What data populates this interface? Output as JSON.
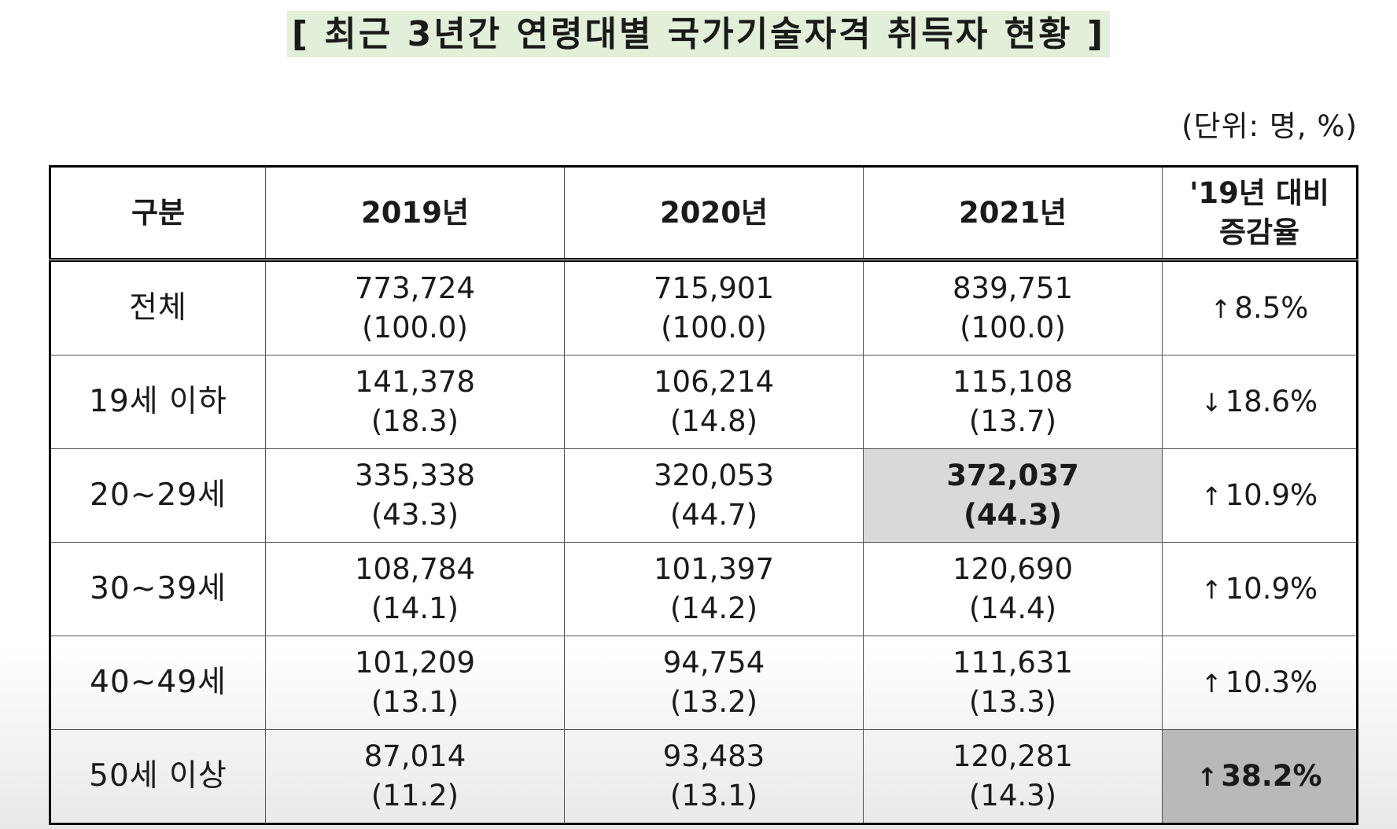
{
  "title": "[ 최근 3년간 연령대별 국가기술자격 취득자 현황 ]",
  "unit": "(단위: 명, %)",
  "headers": [
    "구분",
    "2019년",
    "2020년",
    "2021년",
    "'19년 대비 증감율"
  ],
  "rows": [
    {
      "label": "전체",
      "y2019": "773,724",
      "p2019": "(100.0)",
      "y2020": "715,901",
      "p2020": "(100.0)",
      "y2021": "839,751",
      "p2021": "(100.0)",
      "arrow": "↑",
      "change": "8.5%"
    },
    {
      "label": "19세 이하",
      "y2019": "141,378",
      "p2019": "(18.3)",
      "y2020": "106,214",
      "p2020": "(14.8)",
      "y2021": "115,108",
      "p2021": "(13.7)",
      "arrow": "↓",
      "change": "18.6%"
    },
    {
      "label": "20~29세",
      "y2019": "335,338",
      "p2019": "(43.3)",
      "y2020": "320,053",
      "p2020": "(44.7)",
      "y2021": "372,037",
      "p2021": "(44.3)",
      "arrow": "↑",
      "change": "10.9%"
    },
    {
      "label": "30~39세",
      "y2019": "108,784",
      "p2019": "(14.1)",
      "y2020": "101,397",
      "p2020": "(14.2)",
      "y2021": "120,690",
      "p2021": "(14.4)",
      "arrow": "↑",
      "change": "10.9%"
    },
    {
      "label": "40~49세",
      "y2019": "101,209",
      "p2019": "(13.1)",
      "y2020": "94,754",
      "p2020": "(13.2)",
      "y2021": "111,631",
      "p2021": "(13.3)",
      "arrow": "↑",
      "change": "10.3%"
    },
    {
      "label": "50세 이상",
      "y2019": "87,014",
      "p2019": "(11.2)",
      "y2020": "93,483",
      "p2020": "(13.1)",
      "y2021": "120,281",
      "p2021": "(14.3)",
      "arrow": "↑",
      "change": "38.2%"
    }
  ],
  "highlight_colors": {
    "light": "#d9d9d9",
    "dark": "#b9b9b9",
    "title_bg": "#e2efd9"
  }
}
